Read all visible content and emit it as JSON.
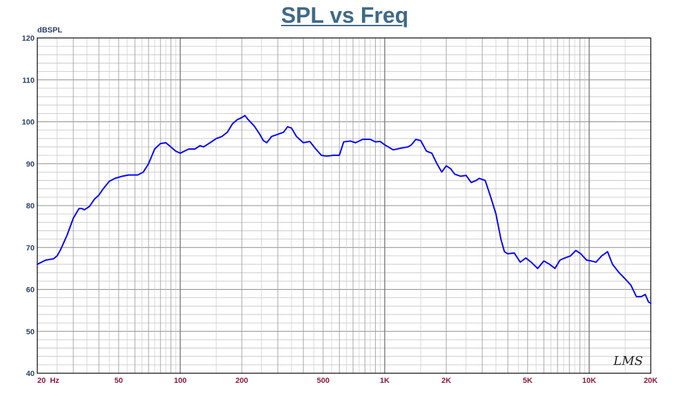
{
  "chart_data": {
    "type": "line",
    "title": "SPL vs Freq",
    "ylabel": "dBSPL",
    "xlabel": "",
    "xscale": "log",
    "xlim": [
      20,
      20000
    ],
    "ylim": [
      40,
      120
    ],
    "grid": true,
    "yticks": [
      120,
      110,
      100,
      90,
      80,
      70,
      60,
      50,
      40
    ],
    "xticks": [
      {
        "value": 20,
        "label": "20  Hz"
      },
      {
        "value": 50,
        "label": "50"
      },
      {
        "value": 100,
        "label": "100"
      },
      {
        "value": 200,
        "label": "200"
      },
      {
        "value": 500,
        "label": "500"
      },
      {
        "value": 1000,
        "label": "1K"
      },
      {
        "value": 2000,
        "label": "2K"
      },
      {
        "value": 5000,
        "label": "5K"
      },
      {
        "value": 10000,
        "label": "10K"
      },
      {
        "value": 20000,
        "label": "20K"
      }
    ],
    "series": [
      {
        "color": "#0000ff",
        "points": [
          [
            20,
            66
          ],
          [
            22,
            67
          ],
          [
            24,
            67.3
          ],
          [
            25,
            68
          ],
          [
            26,
            69.5
          ],
          [
            28,
            73
          ],
          [
            30,
            77
          ],
          [
            32,
            79.3
          ],
          [
            33,
            79.3
          ],
          [
            34,
            79
          ],
          [
            36,
            79.8
          ],
          [
            38,
            81.5
          ],
          [
            40,
            82.5
          ],
          [
            42,
            84
          ],
          [
            45,
            85.8
          ],
          [
            48,
            86.5
          ],
          [
            52,
            87
          ],
          [
            56,
            87.3
          ],
          [
            62,
            87.3
          ],
          [
            66,
            88
          ],
          [
            70,
            90
          ],
          [
            75,
            93.5
          ],
          [
            80,
            94.8
          ],
          [
            85,
            95
          ],
          [
            90,
            94
          ],
          [
            95,
            93
          ],
          [
            100,
            92.5
          ],
          [
            105,
            93
          ],
          [
            110,
            93.5
          ],
          [
            118,
            93.5
          ],
          [
            125,
            94.3
          ],
          [
            130,
            94
          ],
          [
            140,
            95
          ],
          [
            150,
            96
          ],
          [
            160,
            96.5
          ],
          [
            170,
            97.5
          ],
          [
            180,
            99.5
          ],
          [
            190,
            100.5
          ],
          [
            200,
            101
          ],
          [
            207,
            101.5
          ],
          [
            215,
            100.5
          ],
          [
            230,
            99
          ],
          [
            245,
            97
          ],
          [
            255,
            95.5
          ],
          [
            265,
            95
          ],
          [
            280,
            96.5
          ],
          [
            300,
            97
          ],
          [
            320,
            97.5
          ],
          [
            335,
            98.8
          ],
          [
            350,
            98.5
          ],
          [
            370,
            96.5
          ],
          [
            400,
            95
          ],
          [
            430,
            95.3
          ],
          [
            460,
            93.5
          ],
          [
            490,
            92
          ],
          [
            520,
            91.8
          ],
          [
            560,
            92
          ],
          [
            600,
            92
          ],
          [
            630,
            95.2
          ],
          [
            680,
            95.4
          ],
          [
            720,
            95
          ],
          [
            780,
            95.8
          ],
          [
            850,
            95.8
          ],
          [
            900,
            95.2
          ],
          [
            950,
            95.3
          ],
          [
            1000,
            94.5
          ],
          [
            1100,
            93.3
          ],
          [
            1200,
            93.7
          ],
          [
            1300,
            94
          ],
          [
            1350,
            94.5
          ],
          [
            1420,
            95.8
          ],
          [
            1500,
            95.5
          ],
          [
            1600,
            93
          ],
          [
            1700,
            92.5
          ],
          [
            1800,
            90
          ],
          [
            1900,
            88
          ],
          [
            2000,
            89.5
          ],
          [
            2100,
            88.8
          ],
          [
            2200,
            87.5
          ],
          [
            2350,
            87
          ],
          [
            2500,
            87.2
          ],
          [
            2650,
            85.5
          ],
          [
            2800,
            86
          ],
          [
            2900,
            86.5
          ],
          [
            3100,
            86
          ],
          [
            3300,
            82
          ],
          [
            3500,
            78
          ],
          [
            3700,
            72
          ],
          [
            3850,
            69
          ],
          [
            4000,
            68.5
          ],
          [
            4300,
            68.7
          ],
          [
            4600,
            66.5
          ],
          [
            4900,
            67.5
          ],
          [
            5200,
            66.5
          ],
          [
            5600,
            65
          ],
          [
            6000,
            66.8
          ],
          [
            6400,
            66
          ],
          [
            6800,
            65
          ],
          [
            7200,
            67
          ],
          [
            7600,
            67.5
          ],
          [
            8100,
            68
          ],
          [
            8600,
            69.3
          ],
          [
            9100,
            68.5
          ],
          [
            9700,
            67
          ],
          [
            10200,
            66.8
          ],
          [
            10800,
            66.5
          ],
          [
            11500,
            68
          ],
          [
            12300,
            69
          ],
          [
            13000,
            66
          ],
          [
            14000,
            64
          ],
          [
            15000,
            62.5
          ],
          [
            16000,
            61
          ],
          [
            17000,
            58.3
          ],
          [
            18000,
            58.3
          ],
          [
            18800,
            58.8
          ],
          [
            19500,
            57
          ],
          [
            20000,
            56.7
          ]
        ]
      }
    ]
  },
  "logo_text": "LMS"
}
